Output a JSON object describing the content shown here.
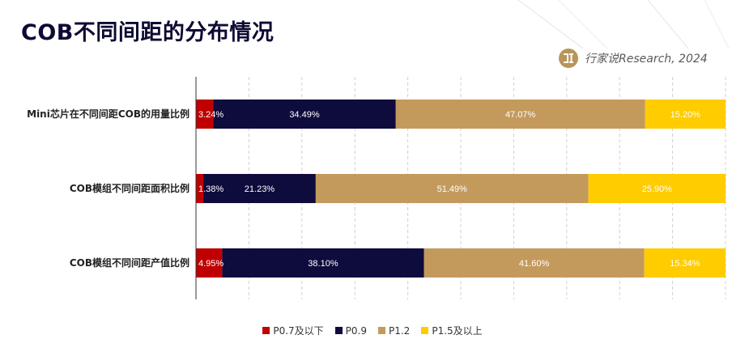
{
  "header": {
    "title": "COB不同间距的分布情况",
    "source": "行家说Research, 2024"
  },
  "colors": {
    "title": "#0d0a33",
    "brand_logo": "#b8955a"
  },
  "chart_data": {
    "type": "bar",
    "orientation": "horizontal",
    "stacked": true,
    "percent": true,
    "categories": [
      "Mini芯片在不同间距COB的用量比例",
      "COB模组不同间距面积比例",
      "COB模组不同间距产值比例"
    ],
    "series": [
      {
        "name": "P0.7及以下",
        "color": "#c00000",
        "label_color": "#ffffff",
        "values": [
          3.24,
          1.38,
          4.95
        ],
        "labels": [
          "3.24%",
          "1.38%",
          "4.95%"
        ]
      },
      {
        "name": "P0.9",
        "color": "#0e0b3d",
        "label_color": "#ffffff",
        "values": [
          34.49,
          21.23,
          38.1
        ],
        "labels": [
          "34.49%",
          "21.23%",
          "38.10%"
        ]
      },
      {
        "name": "P1.2",
        "color": "#c49a5c",
        "label_color": "#ffffff",
        "values": [
          47.07,
          51.49,
          41.6
        ],
        "labels": [
          "47.07%",
          "51.49%",
          "41.60%"
        ]
      },
      {
        "name": "P1.5及以上",
        "color": "#ffcc00",
        "label_color": "#ffffff",
        "values": [
          15.2,
          25.9,
          15.34
        ],
        "labels": [
          "15.20%",
          "25.90%",
          "15.34%"
        ]
      }
    ],
    "xlim": [
      0,
      100
    ],
    "grid": "vertical-dashed",
    "legend_position": "bottom"
  }
}
